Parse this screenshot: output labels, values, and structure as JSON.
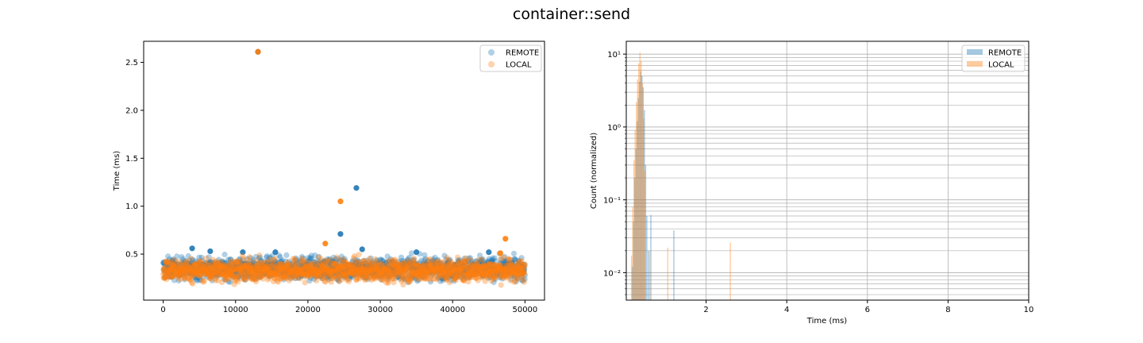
{
  "figure": {
    "title": "container::send"
  },
  "colors": {
    "remote": "#1f77b4",
    "local": "#ff7f0e",
    "grid": "#b0b0b0",
    "axes": "#000000"
  },
  "chart_data": [
    {
      "type": "scatter",
      "title": "",
      "xlabel": "",
      "ylabel": "Time (ms)",
      "xlim": [
        -2700,
        52700
      ],
      "ylim": [
        0.02,
        2.72
      ],
      "xticks": [
        0,
        10000,
        20000,
        30000,
        40000,
        50000
      ],
      "yticks": [
        0.5,
        1.0,
        1.5,
        2.0,
        2.5
      ],
      "grid": false,
      "legend_position": "top-right",
      "series": [
        {
          "name": "REMOTE",
          "outliers": [
            {
              "x": 13100,
              "y": 2.61
            },
            {
              "x": 26700,
              "y": 1.19
            },
            {
              "x": 24500,
              "y": 0.71
            },
            {
              "x": 4000,
              "y": 0.56
            },
            {
              "x": 27500,
              "y": 0.55
            },
            {
              "x": 6500,
              "y": 0.53
            },
            {
              "x": 11000,
              "y": 0.52
            },
            {
              "x": 15500,
              "y": 0.52
            },
            {
              "x": 35000,
              "y": 0.52
            },
            {
              "x": 45000,
              "y": 0.52
            }
          ],
          "bulk": {
            "x_range": [
              0,
              50000
            ],
            "y_center": 0.35,
            "y_spread": 0.1,
            "y_min": 0.18,
            "y_max": 0.51
          }
        },
        {
          "name": "LOCAL",
          "outliers": [
            {
              "x": 13100,
              "y": 2.61
            },
            {
              "x": 24500,
              "y": 1.05
            },
            {
              "x": 47300,
              "y": 0.66
            },
            {
              "x": 22400,
              "y": 0.61
            },
            {
              "x": 46600,
              "y": 0.51
            }
          ],
          "bulk": {
            "x_range": [
              0,
              50000
            ],
            "y_center": 0.33,
            "y_spread": 0.1,
            "y_min": 0.17,
            "y_max": 0.5
          }
        }
      ]
    },
    {
      "type": "bar",
      "subtype": "histogram",
      "title": "",
      "xlabel": "Time (ms)",
      "ylabel": "Count (normalized)",
      "xlim": [
        0.02,
        10.0
      ],
      "ylim": [
        0.0042,
        15
      ],
      "yscale": "log",
      "xticks": [
        2,
        4,
        6,
        8,
        10
      ],
      "yticks": [
        0.01,
        0.1,
        1,
        10
      ],
      "ytick_labels": [
        "10⁻²",
        "10⁻¹",
        "10⁰",
        "10¹"
      ],
      "grid": true,
      "legend_position": "top-right",
      "series": [
        {
          "name": "REMOTE",
          "x": [
            0.17,
            0.2,
            0.23,
            0.26,
            0.29,
            0.32,
            0.35,
            0.38,
            0.41,
            0.44,
            0.47,
            0.5,
            0.53,
            0.57,
            0.63,
            1.2
          ],
          "values": [
            0.012,
            0.05,
            0.2,
            0.5,
            1.2,
            2.5,
            4.2,
            5.8,
            5.0,
            3.5,
            1.7,
            0.3,
            0.06,
            0.02,
            0.062,
            0.038
          ]
        },
        {
          "name": "LOCAL",
          "x": [
            0.15,
            0.18,
            0.21,
            0.24,
            0.27,
            0.3,
            0.33,
            0.36,
            0.39,
            0.42,
            0.45,
            0.48,
            0.6,
            1.05,
            2.6
          ],
          "values": [
            0.017,
            0.08,
            0.35,
            0.9,
            2.2,
            4.5,
            7.5,
            10.5,
            8.0,
            4.0,
            1.3,
            0.25,
            0.02,
            0.022,
            0.026
          ]
        }
      ]
    }
  ]
}
